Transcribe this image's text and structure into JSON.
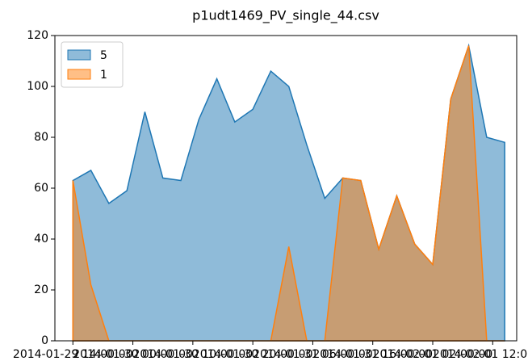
{
  "chart_data": {
    "type": "area",
    "title": "p1udt1469_PV_single_44.csv",
    "x": [
      0,
      3,
      6,
      9,
      12,
      15,
      18,
      21,
      24,
      27,
      30,
      33,
      36,
      39,
      42,
      45,
      48,
      51,
      54,
      57,
      60,
      63,
      66,
      69,
      72
    ],
    "series": [
      {
        "name": "5",
        "color": "#1f77b4",
        "values": [
          63,
          67,
          54,
          59,
          90,
          64,
          63,
          87,
          103,
          86,
          91,
          106,
          100,
          77,
          56,
          64,
          63,
          36,
          57,
          38,
          30,
          95,
          116,
          80,
          78
        ]
      },
      {
        "name": "1",
        "color": "#ff7f0e",
        "values": [
          63,
          22,
          0,
          0,
          0,
          0,
          0,
          0,
          0,
          0,
          0,
          0,
          37,
          0,
          0,
          64,
          63,
          36,
          57,
          38,
          30,
          95,
          116,
          0,
          0
        ]
      }
    ],
    "xlim": [
      -3,
      74
    ],
    "xticks": [
      {
        "value": 0,
        "label": "2014-01-29 14:00:00"
      },
      {
        "value": 10,
        "label": "2014-01-30 00:00:00"
      },
      {
        "value": 20,
        "label": "2014-01-30 10:00:00"
      },
      {
        "value": 30,
        "label": "2014-01-30 20:00:00"
      },
      {
        "value": 40,
        "label": "2014-01-31 06:00:00"
      },
      {
        "value": 50,
        "label": "2014-01-31 16:00:00"
      },
      {
        "value": 60,
        "label": "2014-02-01 02:00:00"
      },
      {
        "value": 70,
        "label": "2014-02-01 12:00:00"
      }
    ],
    "ylim": [
      0,
      120
    ],
    "yticks": [
      0,
      20,
      40,
      60,
      80,
      100,
      120
    ],
    "legend": "upper left"
  }
}
